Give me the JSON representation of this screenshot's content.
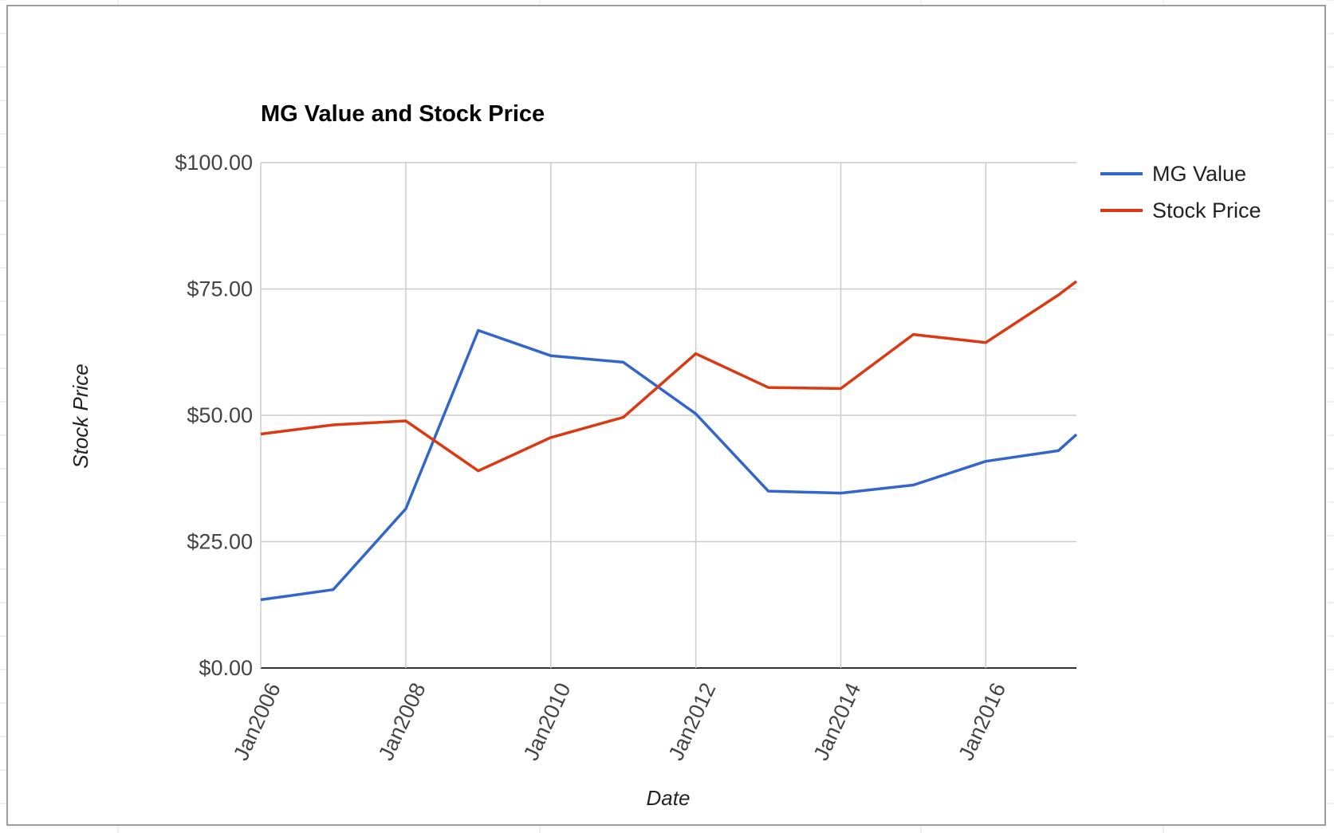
{
  "chart_data": {
    "type": "line",
    "title": "MG Value and Stock Price",
    "xlabel": "Date",
    "ylabel": "Stock Price",
    "x_ticks": [
      "Jan2006",
      "Jan2008",
      "Jan2010",
      "Jan2012",
      "Jan2014",
      "Jan2016"
    ],
    "y_ticks": [
      "$0.00",
      "$25.00",
      "$50.00",
      "$75.00",
      "$100.00"
    ],
    "ylim": [
      0,
      100
    ],
    "xlim": [
      "2006-01",
      "2017-04"
    ],
    "grid": true,
    "legend_position": "right",
    "x": [
      "2006-01",
      "2007-01",
      "2008-01",
      "2009-01",
      "2010-01",
      "2011-01",
      "2012-01",
      "2013-01",
      "2014-01",
      "2015-01",
      "2016-01",
      "2017-01",
      "2017-04"
    ],
    "series": [
      {
        "name": "MG Value",
        "color": "#3366cc",
        "values": [
          13.5,
          15.5,
          31.5,
          66.8,
          61.8,
          60.5,
          50.3,
          35.0,
          34.6,
          36.2,
          40.9,
          43.0,
          46.2
        ]
      },
      {
        "name": "Stock Price",
        "color": "#dc3912",
        "values": [
          46.3,
          48.1,
          48.9,
          39.0,
          45.6,
          49.6,
          62.2,
          55.5,
          55.3,
          66.0,
          64.4,
          73.8,
          76.5
        ]
      }
    ]
  }
}
